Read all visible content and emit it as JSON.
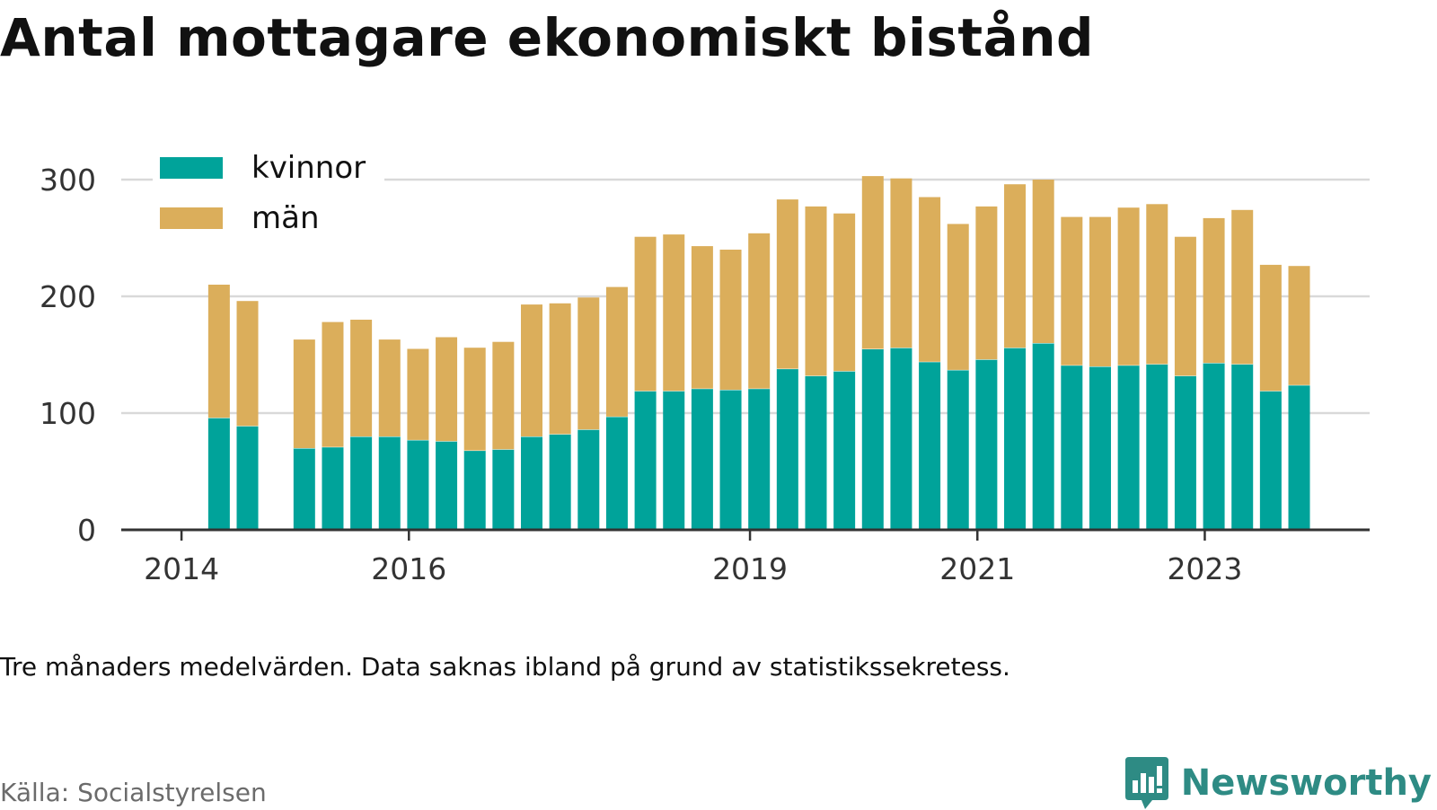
{
  "title": "Antal mottagare ekonomiskt bistånd",
  "note": "Tre månaders medelvärden. Data saknas ibland på grund av statistikssekretess.",
  "source": "Källa: Socialstyrelsen",
  "brand": {
    "name": "Newsworthy",
    "icon": "newsworthy-bar-chart-icon",
    "color": "#2e8b84"
  },
  "colors": {
    "kvinnor": "#00a39a",
    "man": "#dbae5b",
    "grid": "#d9d9d9",
    "axis": "#333333",
    "text": "#333333"
  },
  "chart_data": {
    "type": "bar",
    "stacked": true,
    "title": "Antal mottagare ekonomiskt bistånd",
    "xlabel": "",
    "ylabel": "",
    "ylim": [
      0,
      300
    ],
    "yticks": [
      0,
      100,
      200,
      300
    ],
    "xticks": [
      {
        "label": "2014",
        "x": 2014.0
      },
      {
        "label": "2016",
        "x": 2016.0
      },
      {
        "label": "2019",
        "x": 2019.0
      },
      {
        "label": "2021",
        "x": 2021.0
      },
      {
        "label": "2023",
        "x": 2023.0
      }
    ],
    "xlim": [
      2013.47,
      2024.45
    ],
    "grid": true,
    "legend_position": "top-left",
    "x": [
      2014.33,
      2014.58,
      2015.08,
      2015.33,
      2015.58,
      2015.83,
      2016.08,
      2016.33,
      2016.58,
      2016.83,
      2017.08,
      2017.33,
      2017.58,
      2017.83,
      2018.08,
      2018.33,
      2018.58,
      2018.83,
      2019.08,
      2019.33,
      2019.58,
      2019.83,
      2020.08,
      2020.33,
      2020.58,
      2020.83,
      2021.08,
      2021.33,
      2021.58,
      2021.83,
      2022.08,
      2022.33,
      2022.58,
      2022.83,
      2023.08,
      2023.33,
      2023.58,
      2023.83
    ],
    "series": [
      {
        "name": "kvinnor",
        "values": [
          96,
          89,
          70,
          71,
          80,
          80,
          77,
          76,
          68,
          69,
          80,
          82,
          86,
          97,
          119,
          119,
          121,
          120,
          121,
          138,
          132,
          136,
          155,
          156,
          144,
          137,
          146,
          156,
          160,
          141,
          140,
          141,
          142,
          132,
          143,
          142,
          119,
          124
        ]
      },
      {
        "name": "män",
        "values": [
          114,
          107,
          93,
          107,
          100,
          83,
          78,
          89,
          88,
          92,
          113,
          112,
          113,
          111,
          132,
          134,
          122,
          120,
          133,
          145,
          145,
          135,
          148,
          145,
          141,
          125,
          131,
          140,
          140,
          127,
          128,
          135,
          137,
          119,
          124,
          132,
          108,
          102
        ]
      }
    ]
  }
}
